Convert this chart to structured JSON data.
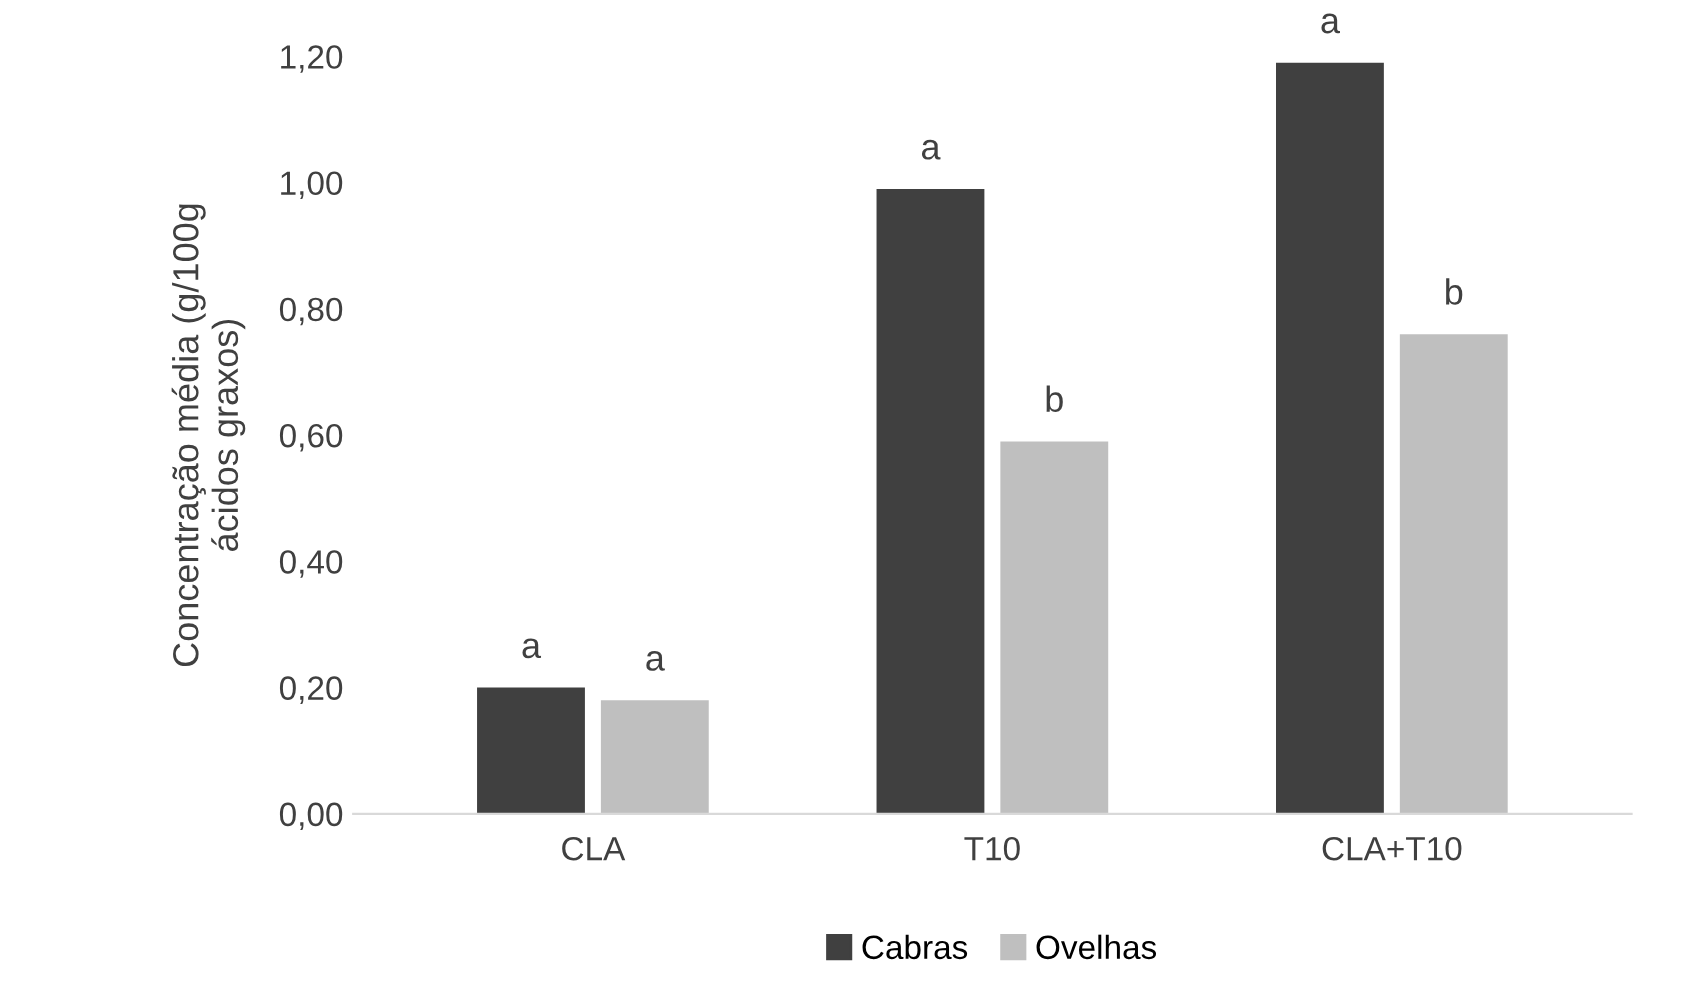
{
  "chart_data": {
    "type": "bar",
    "ylabel": "Concentração média (g/100g\nácidos graxos)",
    "categories": [
      "CLA",
      "T10",
      "CLA+T10"
    ],
    "series": [
      {
        "name": "Cabras",
        "color": "#404040",
        "values": [
          0.2,
          0.99,
          1.19
        ],
        "value_labels": [
          "a",
          "a",
          "a"
        ]
      },
      {
        "name": "Ovelhas",
        "color": "#bfbfbf",
        "values": [
          0.18,
          0.59,
          0.76
        ],
        "value_labels": [
          "a",
          "b",
          "b"
        ]
      }
    ],
    "ylim": [
      0,
      1.2
    ],
    "yticks": [
      {
        "value": 0,
        "label": "0,00"
      },
      {
        "value": 0.2,
        "label": "0,20"
      },
      {
        "value": 0.4,
        "label": "0,40"
      },
      {
        "value": 0.6,
        "label": "0,60"
      },
      {
        "value": 0.8,
        "label": "0,80"
      },
      {
        "value": 1.0,
        "label": "1,00"
      },
      {
        "value": 1.2,
        "label": "1,20"
      }
    ],
    "grid": false,
    "legend": "bottom"
  }
}
